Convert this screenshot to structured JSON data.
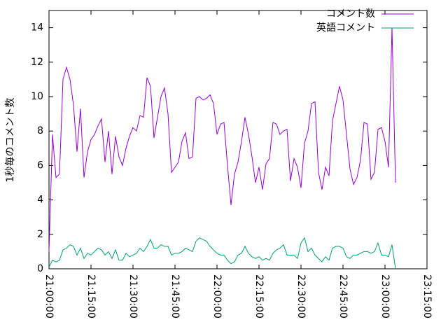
{
  "chart_data": {
    "type": "line",
    "y_label": "1秒毎のコメント数",
    "x": [
      "21:00:00",
      "21:01:15",
      "21:02:30",
      "21:03:45",
      "21:05:00",
      "21:06:15",
      "21:07:30",
      "21:08:45",
      "21:10:00",
      "21:11:15",
      "21:12:30",
      "21:13:45",
      "21:15:00",
      "21:16:15",
      "21:17:30",
      "21:18:45",
      "21:20:00",
      "21:21:15",
      "21:22:30",
      "21:23:45",
      "21:25:00",
      "21:26:15",
      "21:27:30",
      "21:28:45",
      "21:30:00",
      "21:31:15",
      "21:32:30",
      "21:33:45",
      "21:35:00",
      "21:36:15",
      "21:37:30",
      "21:38:45",
      "21:40:00",
      "21:41:15",
      "21:42:30",
      "21:43:45",
      "21:45:00",
      "21:46:15",
      "21:47:30",
      "21:48:45",
      "21:50:00",
      "21:51:15",
      "21:52:30",
      "21:53:45",
      "21:55:00",
      "21:56:15",
      "21:57:30",
      "21:58:45",
      "22:00:00",
      "22:01:15",
      "22:02:30",
      "22:03:45",
      "22:05:00",
      "22:06:15",
      "22:07:30",
      "22:08:45",
      "22:10:00",
      "22:11:15",
      "22:12:30",
      "22:13:45",
      "22:15:00",
      "22:16:15",
      "22:17:30",
      "22:18:45",
      "22:20:00",
      "22:21:15",
      "22:22:30",
      "22:23:45",
      "22:25:00",
      "22:26:15",
      "22:27:30",
      "22:28:45",
      "22:30:00",
      "22:31:15",
      "22:32:30",
      "22:33:45",
      "22:35:00",
      "22:36:15",
      "22:37:30",
      "22:38:45",
      "22:40:00",
      "22:41:15",
      "22:42:30",
      "22:43:45",
      "22:45:00",
      "22:46:15",
      "22:47:30",
      "22:48:45",
      "22:50:00",
      "22:51:15",
      "22:52:30",
      "22:53:45",
      "22:55:00",
      "22:56:15",
      "22:57:30",
      "22:58:45",
      "23:00:00",
      "23:01:15",
      "23:02:30",
      "23:03:45"
    ],
    "series": [
      {
        "name": "コメント数",
        "color": "#9400d3",
        "values": [
          1,
          7.8,
          5.3,
          5.5,
          11,
          11.7,
          11,
          9.5,
          6.8,
          9.3,
          5.3,
          6.8,
          7.5,
          7.8,
          8.3,
          8.7,
          6.2,
          8,
          5.5,
          7.7,
          6.5,
          6,
          7,
          7.7,
          8.2,
          8,
          8.9,
          8.8,
          11.1,
          10.6,
          7.6,
          8.8,
          10,
          10.5,
          9,
          5.6,
          5.9,
          6.2,
          7.4,
          7.9,
          6.4,
          6.5,
          9.9,
          10,
          9.8,
          9.9,
          10.1,
          9.6,
          7.8,
          8.4,
          8.5,
          6,
          3.7,
          5.5,
          6.2,
          7.4,
          8.8,
          7.8,
          6.5,
          5,
          5.9,
          4.6,
          6.1,
          6.4,
          8.5,
          8.4,
          7.8,
          8,
          8.1,
          5.1,
          6.4,
          5.9,
          4.7,
          7.3,
          8,
          9.6,
          9.7,
          5.6,
          4.6,
          5.9,
          5.4,
          8.6,
          9.6,
          10.6,
          9.8,
          7.8,
          5.8,
          4.9,
          5.3,
          6.3,
          8.5,
          8.4,
          5.2,
          5.6,
          8.1,
          8.2,
          7.4,
          5.9,
          14,
          5
        ]
      },
      {
        "name": "英語コメント",
        "color": "#009e73",
        "values": [
          0.1,
          0.5,
          0.4,
          0.5,
          1.1,
          1.2,
          1.4,
          1.3,
          0.8,
          1.2,
          0.6,
          0.9,
          0.8,
          1,
          1.2,
          1.1,
          0.8,
          1,
          0.6,
          1.1,
          0.5,
          0.5,
          0.9,
          0.7,
          0.8,
          0.9,
          1.2,
          1,
          1.3,
          1.7,
          1.2,
          1.2,
          1.4,
          1.3,
          1.3,
          0.8,
          0.9,
          0.9,
          1,
          1.2,
          1.1,
          1,
          1.6,
          1.8,
          1.7,
          1.6,
          1.3,
          1.1,
          0.9,
          0.8,
          0.8,
          0.5,
          0.3,
          0.4,
          0.8,
          0.9,
          1.3,
          0.9,
          0.7,
          0.6,
          0.7,
          0.5,
          0.6,
          0.5,
          0.9,
          1.1,
          1.2,
          1.4,
          0.8,
          0.8,
          0.8,
          0.6,
          1.5,
          1.8,
          1,
          1.2,
          0.8,
          0.6,
          0.4,
          0.7,
          0.5,
          1.2,
          1.3,
          1.3,
          1.2,
          0.7,
          0.6,
          0.8,
          0.8,
          0.9,
          1,
          1,
          0.9,
          1,
          1.5,
          0.8,
          0.8,
          0.7,
          1.4,
          0
        ]
      }
    ],
    "xlim": [
      "21:00:00",
      "23:15:00"
    ],
    "xticks": [
      "21:00:00",
      "21:15:00",
      "21:30:00",
      "21:45:00",
      "22:00:00",
      "22:15:00",
      "22:30:00",
      "22:45:00",
      "23:00:00",
      "23:15:00"
    ],
    "ylim": [
      0,
      15
    ],
    "yticks": [
      0,
      2,
      4,
      6,
      8,
      10,
      12,
      14
    ],
    "legend": "top-right"
  }
}
